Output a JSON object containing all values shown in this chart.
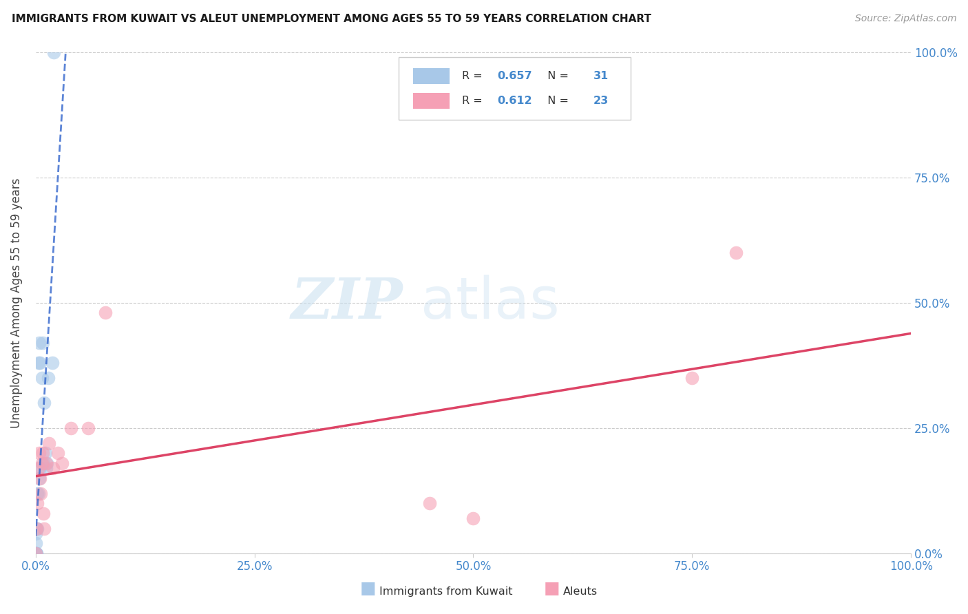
{
  "title": "IMMIGRANTS FROM KUWAIT VS ALEUT UNEMPLOYMENT AMONG AGES 55 TO 59 YEARS CORRELATION CHART",
  "source": "Source: ZipAtlas.com",
  "ylabel": "Unemployment Among Ages 55 to 59 years",
  "xlim": [
    0,
    1.0
  ],
  "ylim": [
    0,
    1.0
  ],
  "xticks": [
    0.0,
    0.25,
    0.5,
    0.75,
    1.0
  ],
  "yticks": [
    0.0,
    0.25,
    0.5,
    0.75,
    1.0
  ],
  "xtick_labels": [
    "0.0%",
    "25.0%",
    "50.0%",
    "75.0%",
    "100.0%"
  ],
  "ytick_labels": [
    "0.0%",
    "25.0%",
    "50.0%",
    "75.0%",
    "100.0%"
  ],
  "kuwait_R": 0.657,
  "kuwait_N": 31,
  "aleut_R": 0.612,
  "aleut_N": 23,
  "kuwait_color": "#a8c8e8",
  "aleut_color": "#f5a0b5",
  "kuwait_line_color": "#3366cc",
  "aleut_line_color": "#dd4466",
  "kuwait_x": [
    0.0,
    0.0,
    0.0,
    0.0,
    0.0,
    0.0,
    0.0,
    0.0,
    0.0,
    0.0,
    0.001,
    0.001,
    0.001,
    0.002,
    0.002,
    0.003,
    0.003,
    0.004,
    0.004,
    0.005,
    0.005,
    0.007,
    0.008,
    0.009,
    0.01,
    0.011,
    0.012,
    0.013,
    0.014,
    0.019,
    0.021
  ],
  "kuwait_y": [
    0.0,
    0.0,
    0.0,
    0.0,
    0.0,
    0.0,
    0.0,
    0.0,
    0.02,
    0.04,
    0.0,
    0.0,
    0.05,
    0.05,
    0.12,
    0.12,
    0.38,
    0.15,
    0.42,
    0.17,
    0.38,
    0.35,
    0.42,
    0.18,
    0.3,
    0.2,
    0.17,
    0.18,
    0.35,
    0.38,
    1.0
  ],
  "aleut_x": [
    0.0,
    0.001,
    0.002,
    0.003,
    0.004,
    0.005,
    0.006,
    0.007,
    0.008,
    0.009,
    0.01,
    0.012,
    0.015,
    0.02,
    0.025,
    0.03,
    0.04,
    0.06,
    0.08,
    0.45,
    0.5,
    0.75,
    0.8
  ],
  "aleut_y": [
    0.0,
    0.05,
    0.1,
    0.17,
    0.2,
    0.15,
    0.12,
    0.18,
    0.2,
    0.08,
    0.05,
    0.18,
    0.22,
    0.17,
    0.2,
    0.18,
    0.25,
    0.25,
    0.48,
    0.1,
    0.07,
    0.35,
    0.6
  ],
  "figsize": [
    14.06,
    8.92
  ],
  "dpi": 100
}
